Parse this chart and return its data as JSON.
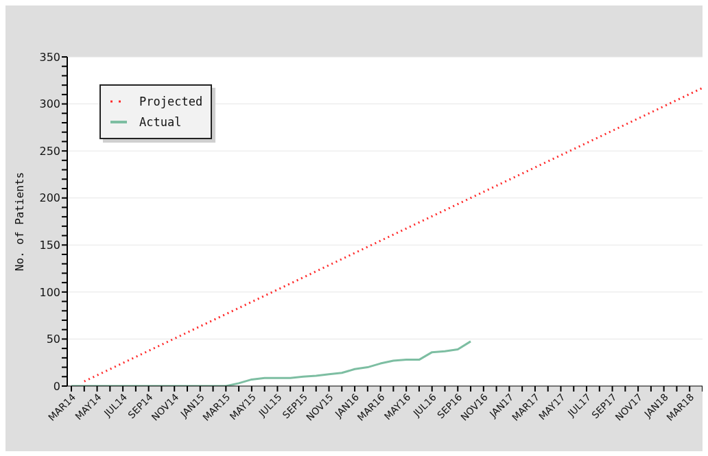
{
  "chart_data": {
    "type": "line",
    "ylabel": "No. of Patients",
    "categories": [
      "MAR14",
      null,
      "MAY14",
      null,
      "JUL14",
      null,
      "SEP14",
      null,
      "NOV14",
      null,
      "JAN15",
      null,
      "MAR15",
      null,
      "MAY15",
      null,
      "JUL15",
      null,
      "SEP15",
      null,
      "NOV15",
      null,
      "JAN16",
      null,
      "MAR16",
      null,
      "MAY16",
      null,
      "JUL16",
      null,
      "SEP16",
      null,
      "NOV16",
      null,
      "JAN17",
      null,
      "MAR17",
      null,
      "MAY17",
      null,
      "JUL17",
      null,
      "SEP17",
      null,
      "NOV17",
      null,
      "JAN18",
      null,
      "MAR18",
      null
    ],
    "series": [
      {
        "name": "Projected",
        "color": "#ff2a2a",
        "line_style": "dotted",
        "values": [
          null,
          5,
          11.5,
          18,
          24.5,
          31,
          37.5,
          44,
          50.5,
          57,
          63.5,
          70,
          76.5,
          83,
          89.5,
          96,
          102.5,
          109,
          115.5,
          122,
          128.5,
          135,
          141.5,
          148,
          154.5,
          161,
          167.5,
          174,
          180.5,
          187,
          193.5,
          200,
          206.5,
          213,
          219.5,
          226,
          232.5,
          239,
          245.5,
          252,
          258.5,
          265,
          271.5,
          278,
          284.5,
          291,
          297.5,
          304,
          310.5,
          317
        ]
      },
      {
        "name": "Actual",
        "color": "#7dbea2",
        "line_style": "solid",
        "values": [
          0,
          0,
          0,
          0,
          0,
          0,
          0,
          0,
          0,
          0,
          0,
          0,
          0,
          3,
          7,
          8.5,
          8.5,
          8.5,
          10,
          11,
          12.5,
          14,
          18,
          20,
          24,
          27,
          28,
          28,
          36,
          37,
          39,
          47.5,
          null,
          null,
          null,
          null,
          null,
          null,
          null,
          null,
          null,
          null,
          null,
          null,
          null,
          null,
          null,
          null,
          null,
          null
        ]
      }
    ],
    "ylim": [
      0,
      350
    ],
    "yticks": [
      0,
      {
        "value": 10,
        "label": null
      },
      {
        "value": 20,
        "label": null
      },
      {
        "value": 30,
        "label": null
      },
      {
        "value": 40,
        "label": null
      },
      50,
      {
        "value": 60,
        "label": null
      },
      {
        "value": 70,
        "label": null
      },
      {
        "value": 80,
        "label": null
      },
      {
        "value": 90,
        "label": null
      },
      100,
      {
        "value": 110,
        "label": null
      },
      {
        "value": 120,
        "label": null
      },
      {
        "value": 130,
        "label": null
      },
      {
        "value": 140,
        "label": null
      },
      150,
      {
        "value": 160,
        "label": null
      },
      {
        "value": 170,
        "label": null
      },
      {
        "value": 180,
        "label": null
      },
      {
        "value": 190,
        "label": null
      },
      200,
      {
        "value": 210,
        "label": null
      },
      {
        "value": 220,
        "label": null
      },
      {
        "value": 230,
        "label": null
      },
      {
        "value": 240,
        "label": null
      },
      250,
      {
        "value": 260,
        "label": null
      },
      {
        "value": 270,
        "label": null
      },
      {
        "value": 280,
        "label": null
      },
      {
        "value": 290,
        "label": null
      },
      300,
      {
        "value": 310,
        "label": null
      },
      {
        "value": 320,
        "label": null
      },
      {
        "value": 330,
        "label": null
      },
      {
        "value": 340,
        "label": null
      },
      350
    ],
    "grid": "y",
    "legend": "top left",
    "marker": "none"
  }
}
